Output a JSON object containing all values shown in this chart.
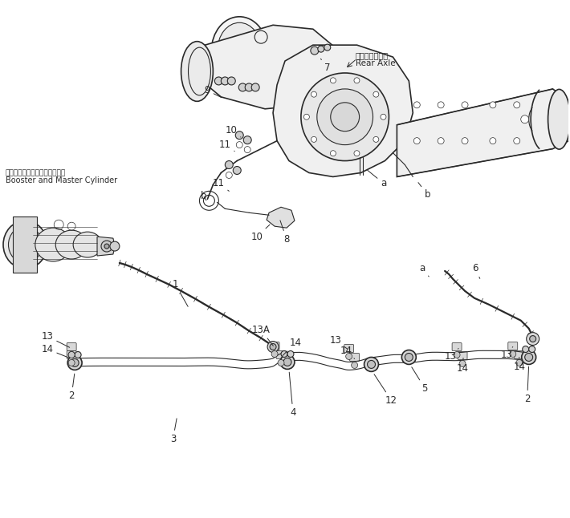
{
  "bg_color": "#ffffff",
  "line_color": "#2a2a2a",
  "fig_width": 7.1,
  "fig_height": 6.46,
  "dpi": 100,
  "labels": {
    "rear_axle_jp": "リヤーアクスル",
    "rear_axle_en": "Rear Axle",
    "booster_jp": "ブースタおよびマスタシリンダ",
    "booster_en": "Booster and Master Cylinder"
  }
}
